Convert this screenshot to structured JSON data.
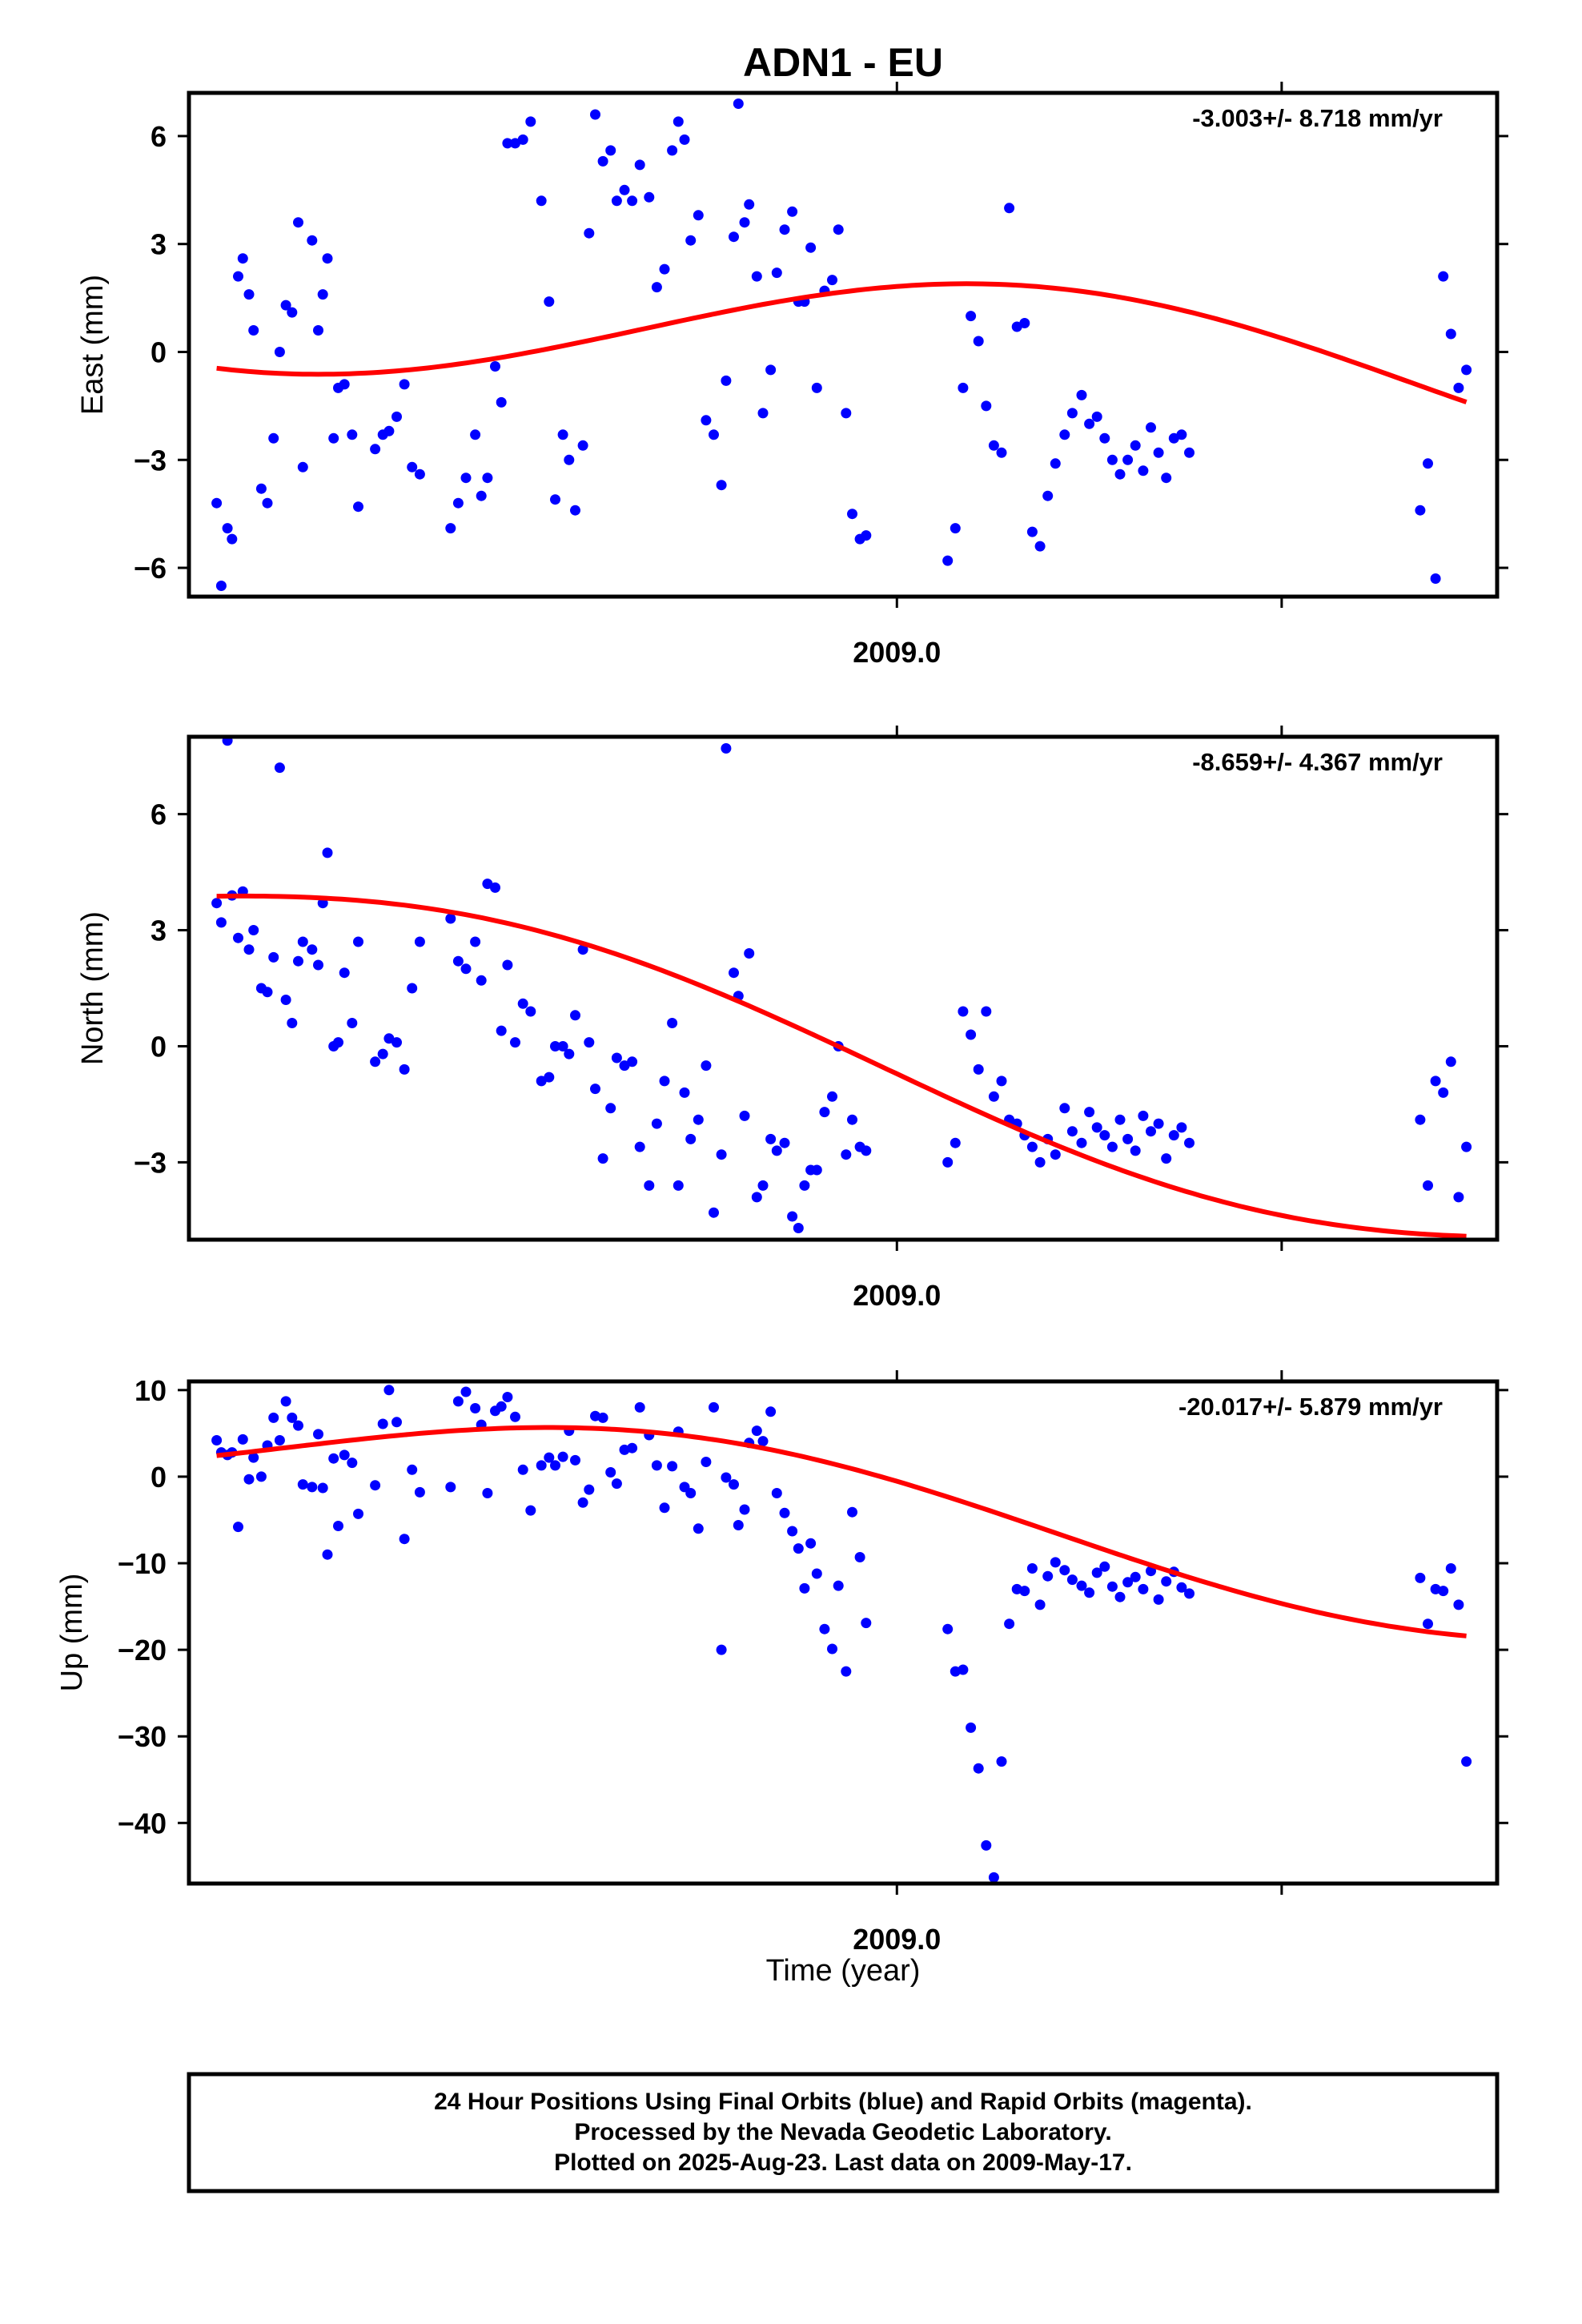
{
  "title": "ADN1 - EU",
  "x_label": "Time (year)",
  "x_tick_label": "2009.0",
  "caption": [
    "24 Hour Positions Using Final Orbits (blue) and Rapid Orbits (magenta).",
    "Processed by the Nevada Geodetic Laboratory.",
    "Plotted on 2025-Aug-23. Last data on 2009-May-17."
  ],
  "colors": {
    "points": "#0000ff",
    "fit": "#ff0000",
    "frame": "#000000"
  },
  "chart_data": [
    {
      "type": "scatter",
      "ylabel": "East (mm)",
      "rate": "-3.003+/- 8.718 mm/yr",
      "xlim": [
        2008.54,
        2009.39
      ],
      "ylim": [
        -6.8,
        7.2
      ],
      "yticks": [
        -6,
        -3,
        0,
        3,
        6
      ],
      "x": [
        2008.558,
        2008.561,
        2008.565,
        2008.568,
        2008.572,
        2008.575,
        2008.579,
        2008.582,
        2008.587,
        2008.591,
        2008.595,
        2008.599,
        2008.603,
        2008.607,
        2008.611,
        2008.614,
        2008.62,
        2008.624,
        2008.627,
        2008.63,
        2008.634,
        2008.637,
        2008.641,
        2008.646,
        2008.65,
        2008.661,
        2008.666,
        2008.67,
        2008.675,
        2008.68,
        2008.685,
        2008.69,
        2008.71,
        2008.715,
        2008.72,
        2008.726,
        2008.73,
        2008.734,
        2008.739,
        2008.743,
        2008.747,
        2008.752,
        2008.757,
        2008.762,
        2008.769,
        2008.774,
        2008.778,
        2008.783,
        2008.787,
        2008.791,
        2008.796,
        2008.8,
        2008.804,
        2008.809,
        2008.814,
        2008.818,
        2008.823,
        2008.828,
        2008.833,
        2008.839,
        2008.844,
        2008.849,
        2008.854,
        2008.858,
        2008.862,
        2008.866,
        2008.871,
        2008.876,
        2008.881,
        2008.886,
        2008.889,
        2008.894,
        2008.897,
        2008.901,
        2008.904,
        2008.909,
        2008.913,
        2008.918,
        2008.922,
        2008.927,
        2008.932,
        2008.936,
        2008.94,
        2008.944,
        2008.948,
        2008.953,
        2008.958,
        2008.962,
        2008.967,
        2008.971,
        2008.976,
        2008.98,
        2009.033,
        2009.038,
        2009.043,
        2009.048,
        2009.053,
        2009.058,
        2009.063,
        2009.068,
        2009.073,
        2009.078,
        2009.083,
        2009.088,
        2009.093,
        2009.098,
        2009.103,
        2009.109,
        2009.114,
        2009.12,
        2009.125,
        2009.13,
        2009.135,
        2009.14,
        2009.145,
        2009.15,
        2009.155,
        2009.16,
        2009.165,
        2009.17,
        2009.175,
        2009.18,
        2009.185,
        2009.19,
        2009.34,
        2009.345,
        2009.35,
        2009.355,
        2009.36,
        2009.365,
        2009.37
      ],
      "y": [
        -4.2,
        -6.5,
        -4.9,
        -5.2,
        2.1,
        2.6,
        1.6,
        0.6,
        -3.8,
        -4.2,
        -2.4,
        0.0,
        1.3,
        1.1,
        3.6,
        -3.2,
        3.1,
        0.6,
        1.6,
        2.6,
        -2.4,
        -1.0,
        -0.9,
        -2.3,
        -4.3,
        -2.7,
        -2.3,
        -2.2,
        -1.8,
        -0.9,
        -3.2,
        -3.4,
        -4.9,
        -4.2,
        -3.5,
        -2.3,
        -4.0,
        -3.5,
        -0.4,
        -1.4,
        5.8,
        5.8,
        5.9,
        6.4,
        4.2,
        1.4,
        -4.1,
        -2.3,
        -3.0,
        -4.4,
        -2.6,
        3.3,
        6.6,
        5.3,
        5.6,
        4.2,
        4.5,
        4.2,
        5.2,
        4.3,
        1.8,
        2.3,
        5.6,
        6.4,
        5.9,
        3.1,
        3.8,
        -1.9,
        -2.3,
        -3.7,
        -0.8,
        3.2,
        6.9,
        3.6,
        4.1,
        2.1,
        -1.7,
        -0.5,
        2.2,
        3.4,
        3.9,
        1.4,
        1.4,
        2.9,
        -1.0,
        1.7,
        2.0,
        3.4,
        -1.7,
        -4.5,
        -5.2,
        -5.1,
        -5.8,
        -4.9,
        -1.0,
        1.0,
        0.3,
        -1.5,
        -2.6,
        -2.8,
        4.0,
        0.7,
        0.8,
        -5.0,
        -5.4,
        -4.0,
        -3.1,
        -2.3,
        -1.7,
        -1.2,
        -2.0,
        -1.8,
        -2.4,
        -3.0,
        -3.4,
        -3.0,
        -2.6,
        -3.3,
        -2.1,
        -2.8,
        -3.5,
        -2.4,
        -2.3,
        -2.8,
        -4.4,
        -3.1,
        -6.3,
        2.1,
        0.5,
        -1.0,
        -0.5
      ],
      "fit": {
        "x0": 2008.558,
        "x1": 2009.37,
        "mean": 0.25,
        "amp": 1.95,
        "phase_x": 2008.835,
        "period": 1.0,
        "trend": -3.003
      }
    },
    {
      "type": "scatter",
      "ylabel": "North (mm)",
      "rate": "-8.659+/- 4.367 mm/yr",
      "xlim": [
        2008.54,
        2009.39
      ],
      "ylim": [
        -5.0,
        8.0
      ],
      "yticks": [
        -3,
        0,
        3,
        6
      ],
      "x": [
        2008.558,
        2008.561,
        2008.565,
        2008.568,
        2008.572,
        2008.575,
        2008.579,
        2008.582,
        2008.587,
        2008.591,
        2008.595,
        2008.599,
        2008.603,
        2008.607,
        2008.611,
        2008.614,
        2008.62,
        2008.624,
        2008.627,
        2008.63,
        2008.634,
        2008.637,
        2008.641,
        2008.646,
        2008.65,
        2008.661,
        2008.666,
        2008.67,
        2008.675,
        2008.68,
        2008.685,
        2008.69,
        2008.71,
        2008.715,
        2008.72,
        2008.726,
        2008.73,
        2008.734,
        2008.739,
        2008.743,
        2008.747,
        2008.752,
        2008.757,
        2008.762,
        2008.769,
        2008.774,
        2008.778,
        2008.783,
        2008.787,
        2008.791,
        2008.796,
        2008.8,
        2008.804,
        2008.809,
        2008.814,
        2008.818,
        2008.823,
        2008.828,
        2008.833,
        2008.839,
        2008.844,
        2008.849,
        2008.854,
        2008.858,
        2008.862,
        2008.866,
        2008.871,
        2008.876,
        2008.881,
        2008.886,
        2008.889,
        2008.894,
        2008.897,
        2008.901,
        2008.904,
        2008.909,
        2008.913,
        2008.918,
        2008.922,
        2008.927,
        2008.932,
        2008.936,
        2008.94,
        2008.944,
        2008.948,
        2008.953,
        2008.958,
        2008.962,
        2008.967,
        2008.971,
        2008.976,
        2008.98,
        2009.033,
        2009.038,
        2009.043,
        2009.048,
        2009.053,
        2009.058,
        2009.063,
        2009.068,
        2009.073,
        2009.078,
        2009.083,
        2009.088,
        2009.093,
        2009.098,
        2009.103,
        2009.109,
        2009.114,
        2009.12,
        2009.125,
        2009.13,
        2009.135,
        2009.14,
        2009.145,
        2009.15,
        2009.155,
        2009.16,
        2009.165,
        2009.17,
        2009.175,
        2009.18,
        2009.185,
        2009.19,
        2009.34,
        2009.345,
        2009.35,
        2009.355,
        2009.36,
        2009.365,
        2009.37
      ],
      "y": [
        3.7,
        3.2,
        7.9,
        3.9,
        2.8,
        4.0,
        2.5,
        3.0,
        1.5,
        1.4,
        2.3,
        7.2,
        1.2,
        0.6,
        2.2,
        2.7,
        2.5,
        2.1,
        3.7,
        5.0,
        0.0,
        0.1,
        1.9,
        0.6,
        2.7,
        -0.4,
        -0.2,
        0.2,
        0.1,
        -0.6,
        1.5,
        2.7,
        3.3,
        2.2,
        2.0,
        2.7,
        1.7,
        4.2,
        4.1,
        0.4,
        2.1,
        0.1,
        1.1,
        0.9,
        -0.9,
        -0.8,
        0.0,
        0.0,
        -0.2,
        0.8,
        2.5,
        0.1,
        -1.1,
        -2.9,
        -1.6,
        -0.3,
        -0.5,
        -0.4,
        -2.6,
        -3.6,
        -2.0,
        -0.9,
        0.6,
        -3.6,
        -1.2,
        -2.4,
        -1.9,
        -0.5,
        -4.3,
        -2.8,
        7.7,
        1.9,
        1.3,
        -1.8,
        2.4,
        -3.9,
        -3.6,
        -2.4,
        -2.7,
        -2.5,
        -4.4,
        -4.7,
        -3.6,
        -3.2,
        -3.2,
        -1.7,
        -1.3,
        0.0,
        -2.8,
        -1.9,
        -2.6,
        -2.7,
        -3.0,
        -2.5,
        0.9,
        0.3,
        -0.6,
        0.9,
        -1.3,
        -0.9,
        -1.9,
        -2.0,
        -2.3,
        -2.6,
        -3.0,
        -2.4,
        -2.8,
        -1.6,
        -2.2,
        -2.5,
        -1.7,
        -2.1,
        -2.3,
        -2.6,
        -1.9,
        -2.4,
        -2.7,
        -1.8,
        -2.2,
        -2.0,
        -2.9,
        -2.3,
        -2.1,
        -2.5,
        -1.9,
        -3.6,
        -0.9,
        -1.2,
        -0.4,
        -3.9,
        -2.6
      ],
      "fit": {
        "x0": 2008.558,
        "x1": 2009.37,
        "mean": -0.3,
        "amp": 1.6,
        "phase_x": 2008.49,
        "period": 1.0,
        "trend": -8.659
      }
    },
    {
      "type": "scatter",
      "ylabel": "Up (mm)",
      "rate": "-20.017+/- 5.879 mm/yr",
      "xlim": [
        2008.54,
        2009.39
      ],
      "ylim": [
        -47,
        11
      ],
      "yticks": [
        -40,
        -30,
        -20,
        -10,
        0,
        10
      ],
      "x": [
        2008.558,
        2008.561,
        2008.565,
        2008.568,
        2008.572,
        2008.575,
        2008.579,
        2008.582,
        2008.587,
        2008.591,
        2008.595,
        2008.599,
        2008.603,
        2008.607,
        2008.611,
        2008.614,
        2008.62,
        2008.624,
        2008.627,
        2008.63,
        2008.634,
        2008.637,
        2008.641,
        2008.646,
        2008.65,
        2008.661,
        2008.666,
        2008.67,
        2008.675,
        2008.68,
        2008.685,
        2008.69,
        2008.71,
        2008.715,
        2008.72,
        2008.726,
        2008.73,
        2008.734,
        2008.739,
        2008.743,
        2008.747,
        2008.752,
        2008.757,
        2008.762,
        2008.769,
        2008.774,
        2008.778,
        2008.783,
        2008.787,
        2008.791,
        2008.796,
        2008.8,
        2008.804,
        2008.809,
        2008.814,
        2008.818,
        2008.823,
        2008.828,
        2008.833,
        2008.839,
        2008.844,
        2008.849,
        2008.854,
        2008.858,
        2008.862,
        2008.866,
        2008.871,
        2008.876,
        2008.881,
        2008.886,
        2008.889,
        2008.894,
        2008.897,
        2008.901,
        2008.904,
        2008.909,
        2008.913,
        2008.918,
        2008.922,
        2008.927,
        2008.932,
        2008.936,
        2008.94,
        2008.944,
        2008.948,
        2008.953,
        2008.958,
        2008.962,
        2008.967,
        2008.971,
        2008.976,
        2008.98,
        2009.033,
        2009.038,
        2009.043,
        2009.048,
        2009.053,
        2009.058,
        2009.063,
        2009.068,
        2009.073,
        2009.078,
        2009.083,
        2009.088,
        2009.093,
        2009.098,
        2009.103,
        2009.109,
        2009.114,
        2009.12,
        2009.125,
        2009.13,
        2009.135,
        2009.14,
        2009.145,
        2009.15,
        2009.155,
        2009.16,
        2009.165,
        2009.17,
        2009.175,
        2009.18,
        2009.185,
        2009.19,
        2009.34,
        2009.345,
        2009.35,
        2009.355,
        2009.36,
        2009.365,
        2009.37
      ],
      "y": [
        4.2,
        2.8,
        2.5,
        2.8,
        -5.8,
        4.3,
        -0.3,
        2.2,
        0.0,
        3.6,
        6.8,
        4.2,
        8.7,
        6.8,
        5.9,
        -0.9,
        -1.2,
        4.9,
        -1.3,
        -9.0,
        2.1,
        -5.7,
        2.5,
        1.6,
        -4.3,
        -1.0,
        6.1,
        10.0,
        6.3,
        -7.2,
        0.8,
        -1.8,
        -1.2,
        8.7,
        9.8,
        7.9,
        6.0,
        -1.9,
        7.6,
        8.1,
        9.2,
        6.9,
        0.8,
        -3.9,
        1.3,
        2.2,
        1.3,
        2.3,
        5.3,
        1.9,
        -3.0,
        -1.5,
        7.0,
        6.8,
        0.5,
        -0.8,
        3.1,
        3.3,
        8.0,
        4.8,
        1.3,
        -3.6,
        1.2,
        5.2,
        -1.2,
        -1.9,
        -6.0,
        1.7,
        8.0,
        -20.0,
        -0.1,
        -0.9,
        -5.6,
        -3.8,
        3.9,
        5.3,
        4.1,
        7.5,
        -1.9,
        -4.2,
        -6.3,
        -8.3,
        -12.9,
        -7.7,
        -11.2,
        -17.6,
        -19.9,
        -12.6,
        -22.5,
        -4.1,
        -9.3,
        -16.9,
        -17.6,
        -22.5,
        -22.3,
        -29.0,
        -33.7,
        -42.6,
        -46.3,
        -32.9,
        -17.0,
        -13.0,
        -13.2,
        -10.6,
        -14.8,
        -11.5,
        -9.9,
        -10.8,
        -11.9,
        -12.6,
        -13.4,
        -11.1,
        -10.4,
        -12.7,
        -13.9,
        -12.2,
        -11.6,
        -13.0,
        -10.9,
        -14.2,
        -12.1,
        -11.0,
        -12.8,
        -13.5,
        -11.7,
        -17.0,
        -13.0,
        -13.2,
        -10.6,
        -14.8,
        -32.9
      ],
      "fit": {
        "x0": 2008.558,
        "x1": 2009.37,
        "mean": -3.8,
        "amp": 6.5,
        "phase_x": 2008.605,
        "period": 1.0,
        "trend": -20.017
      }
    }
  ]
}
